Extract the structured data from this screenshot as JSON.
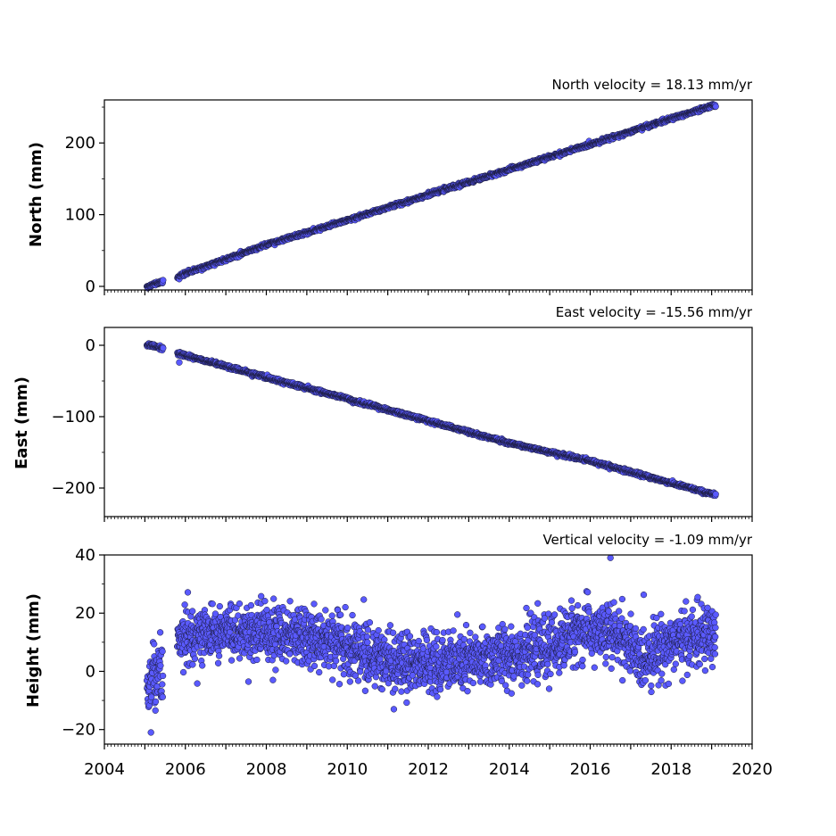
{
  "chart_data": [
    {
      "type": "scatter",
      "title": "North velocity = 18.13 mm/yr",
      "xlabel": "",
      "ylabel": "North (mm)",
      "xlim": [
        2004,
        2020
      ],
      "ylim": [
        -5,
        260
      ],
      "yticks": [
        0,
        100,
        200
      ],
      "ytick_labels": [
        "0",
        "100",
        "200"
      ],
      "velocity_mm_per_yr": 18.13,
      "x_range": [
        2005.05,
        2019.1
      ],
      "y_range": [
        0,
        253
      ],
      "gap": [
        2005.45,
        2005.8
      ],
      "marker_color": "#5a5aff",
      "marker_edge": "#1a1a3a",
      "series": [
        {
          "x": [
            2005.05,
            2005.4,
            2005.8,
            2006.0,
            2008.0,
            2010.0,
            2012.0,
            2014.0,
            2016.0,
            2018.0,
            2019.1
          ],
          "y": [
            0,
            6,
            12,
            18,
            58,
            92,
            128,
            163,
            198,
            234,
            253
          ]
        }
      ]
    },
    {
      "type": "scatter",
      "title": "East velocity = -15.56 mm/yr",
      "xlabel": "",
      "ylabel": "East (mm)",
      "xlim": [
        2004,
        2020
      ],
      "ylim": [
        -240,
        25
      ],
      "yticks": [
        -200,
        -100,
        0
      ],
      "ytick_labels": [
        "−200",
        "−100",
        "0"
      ],
      "velocity_mm_per_yr": -15.56,
      "x_range": [
        2005.05,
        2019.1
      ],
      "y_range": [
        2,
        -210
      ],
      "gap": [
        2005.45,
        2005.8
      ],
      "marker_color": "#5a5aff",
      "marker_edge": "#1a1a3a",
      "series": [
        {
          "x": [
            2005.05,
            2005.4,
            2005.8,
            2006.0,
            2008.0,
            2010.0,
            2012.0,
            2014.0,
            2016.0,
            2018.0,
            2019.1
          ],
          "y": [
            1,
            -4,
            -11,
            -14,
            -45,
            -75,
            -106,
            -137,
            -162,
            -193,
            -210
          ]
        }
      ],
      "outliers": [
        {
          "x": 2005.85,
          "y": -24
        }
      ]
    },
    {
      "type": "scatter",
      "title": "Vertical velocity = -1.09 mm/yr",
      "xlabel": "",
      "ylabel": "Height (mm)",
      "xlim": [
        2004,
        2020
      ],
      "ylim": [
        -25,
        40
      ],
      "yticks": [
        -20,
        0,
        20,
        40
      ],
      "ytick_labels": [
        "−20",
        "0",
        "20",
        "40"
      ],
      "xticks": [
        2004,
        2006,
        2008,
        2010,
        2012,
        2014,
        2016,
        2018,
        2020
      ],
      "xtick_labels": [
        "2004",
        "2006",
        "2008",
        "2010",
        "2012",
        "2014",
        "2016",
        "2018",
        "2020"
      ],
      "velocity_mm_per_yr": -1.09,
      "x_range": [
        2005.05,
        2019.1
      ],
      "gap": [
        2005.45,
        2005.8
      ],
      "marker_color": "#5a5aff",
      "marker_edge": "#1a1a3a",
      "trend": {
        "x": [
          2005.05,
          2005.5,
          2005.8,
          2006.5,
          2007.5,
          2008.5,
          2009.5,
          2010.5,
          2011.2,
          2012.0,
          2013.0,
          2014.0,
          2015.0,
          2015.7,
          2016.3,
          2016.8,
          2017.2,
          2018.0,
          2019.1
        ],
        "y": [
          -3,
          -1,
          10,
          13,
          14,
          13,
          11,
          6,
          2,
          3,
          3,
          6,
          8,
          14,
          13,
          12,
          4,
          10,
          13
        ]
      },
      "scatter_sd_mm": 5,
      "outliers": [
        {
          "x": 2016.5,
          "y": 39
        },
        {
          "x": 2005.15,
          "y": -21
        },
        {
          "x": 2011.15,
          "y": -13
        }
      ]
    }
  ]
}
